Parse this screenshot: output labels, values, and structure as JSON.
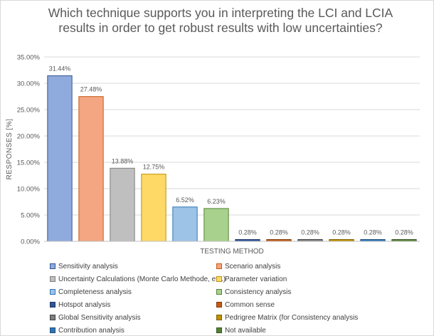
{
  "chart_data": {
    "type": "bar",
    "title": "Which technique supports you in interpreting the LCI and LCIA results in order to get robust results with low uncertainties?",
    "xlabel": "TESTING METHOD",
    "ylabel": "RESPONSES [%]",
    "ylim": [
      0,
      35
    ],
    "y_ticks": [
      "0.00%",
      "5.00%",
      "10.00%",
      "15.00%",
      "20.00%",
      "25.00%",
      "30.00%",
      "35.00%"
    ],
    "grid": true,
    "legend_position": "bottom",
    "categories": [
      "Sensitivity analysis",
      "Scenario analysis",
      "Uncertainty Calculations (Monte Carlo Methode, etc.)",
      "Parameter variation",
      "Completeness analysis",
      "Consistency analysis",
      "Hotspot analysis",
      "Common sense",
      "Global Sensitivity analysis",
      "Pedrigree Matrix (for Consistency analysis",
      "Contribution analysis",
      "Not available"
    ],
    "values": [
      31.44,
      27.48,
      13.88,
      12.75,
      6.52,
      6.23,
      0.28,
      0.28,
      0.28,
      0.28,
      0.28,
      0.28
    ],
    "data_labels": [
      "31.44%",
      "27.48%",
      "13.88%",
      "12.75%",
      "6.52%",
      "6.23%",
      "0.28%",
      "0.28%",
      "0.28%",
      "0.28%",
      "0.28%",
      "0.28%"
    ],
    "colors": [
      "#8faadc",
      "#f4a582",
      "#bfbfbf",
      "#ffd966",
      "#9dc3e6",
      "#a9d18e",
      "#2f5597",
      "#c55a11",
      "#7f7f7f",
      "#bf9000",
      "#2e75b6",
      "#548235"
    ],
    "edge_colors": [
      "#2f5597",
      "#c55a11",
      "#7f7f7f",
      "#bf9000",
      "#2e75b6",
      "#548235",
      "#1f3864",
      "#843c0c",
      "#404040",
      "#7f6000",
      "#1f4e79",
      "#375623"
    ]
  }
}
